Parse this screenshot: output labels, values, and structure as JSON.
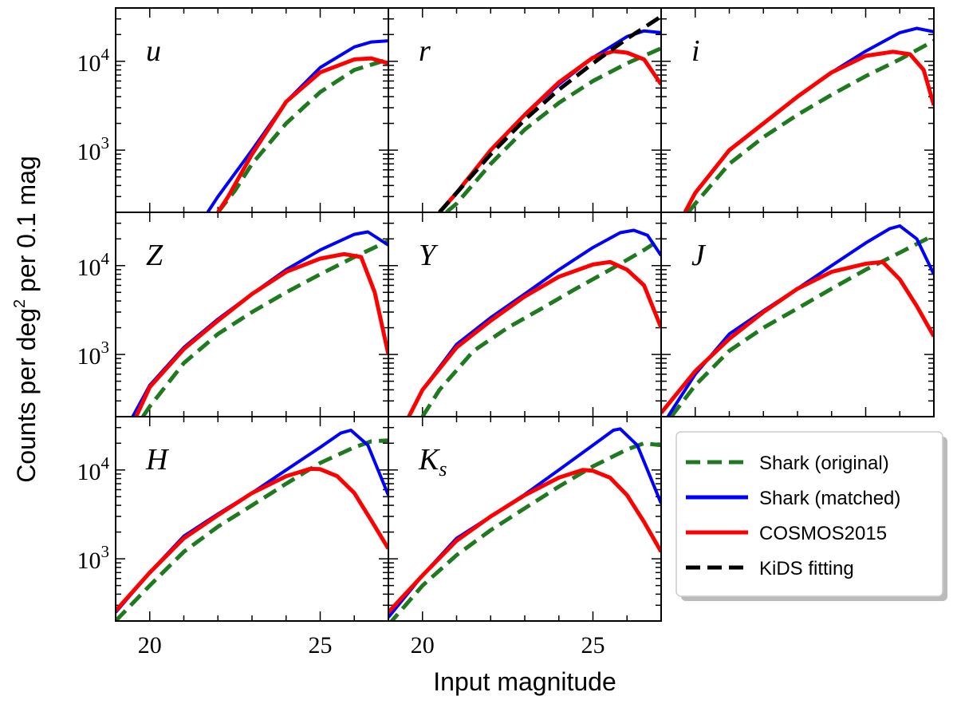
{
  "figure": {
    "xlabel": "Input magnitude",
    "ylabel_main": "Counts per deg",
    "ylabel_sup": "2",
    "ylabel_tail": " per 0.1 mag"
  },
  "chart_data": {
    "type": "line",
    "xlim": [
      19.0,
      27.0
    ],
    "ylim_log10": [
      2.3,
      4.6
    ],
    "yscale": "log",
    "xticks": [
      20,
      25
    ],
    "xtick_labels": [
      "20",
      "25"
    ],
    "yticks": [
      1000,
      10000
    ],
    "ytick_labels": [
      {
        "base": "10",
        "exp": "3"
      },
      {
        "base": "10",
        "exp": "4"
      }
    ],
    "legend": {
      "placement": "lower-right",
      "entries": [
        {
          "label": "Shark (original)",
          "color": "#1f7a1f",
          "style": "dashed"
        },
        {
          "label": "Shark (matched)",
          "color": "#0000ff",
          "style": "solid"
        },
        {
          "label": "COSMOS2015",
          "color": "#ff0000",
          "style": "solid"
        },
        {
          "label": "KiDS fitting",
          "color": "#000000",
          "style": "dashed"
        }
      ]
    },
    "colors": {
      "original": "#1f7a1f",
      "matched": "#0000ff",
      "cosmos": "#ff0000",
      "kids": "#000000"
    },
    "panels": [
      {
        "label": "u",
        "series": {
          "original": [
            [
              22.0,
              200
            ],
            [
              22.5,
              350
            ],
            [
              23.0,
              700
            ],
            [
              24.0,
              2000
            ],
            [
              25.0,
              4500
            ],
            [
              26.0,
              8000
            ],
            [
              27.0,
              10500
            ]
          ],
          "matched": [
            [
              21.7,
              200
            ],
            [
              22.0,
              300
            ],
            [
              23.0,
              1000
            ],
            [
              24.0,
              3500
            ],
            [
              25.0,
              8500
            ],
            [
              26.0,
              14500
            ],
            [
              26.5,
              16500
            ],
            [
              27.0,
              17000
            ]
          ],
          "cosmos": [
            [
              22.0,
              200
            ],
            [
              22.3,
              300
            ],
            [
              23.0,
              900
            ],
            [
              24.0,
              3500
            ],
            [
              25.0,
              7500
            ],
            [
              26.0,
              10500
            ],
            [
              26.5,
              10800
            ],
            [
              27.0,
              9500
            ]
          ]
        }
      },
      {
        "label": "r",
        "series": {
          "original": [
            [
              20.7,
              200
            ],
            [
              21.0,
              250
            ],
            [
              22.0,
              700
            ],
            [
              23.0,
              1700
            ],
            [
              24.0,
              3400
            ],
            [
              25.0,
              6000
            ],
            [
              26.0,
              9500
            ],
            [
              27.0,
              14000
            ]
          ],
          "matched": [
            [
              20.5,
              200
            ],
            [
              21.0,
              330
            ],
            [
              22.0,
              1000
            ],
            [
              23.0,
              2500
            ],
            [
              24.0,
              5500
            ],
            [
              25.0,
              11000
            ],
            [
              26.0,
              19000
            ],
            [
              26.5,
              22000
            ],
            [
              27.0,
              21000
            ]
          ],
          "cosmos": [
            [
              20.5,
              200
            ],
            [
              21.0,
              330
            ],
            [
              22.0,
              1000
            ],
            [
              23.0,
              2500
            ],
            [
              24.0,
              5800
            ],
            [
              25.0,
              11000
            ],
            [
              25.6,
              13000
            ],
            [
              26.0,
              12500
            ],
            [
              26.5,
              10500
            ],
            [
              27.0,
              5500
            ]
          ],
          "kids": [
            [
              20.5,
              200
            ],
            [
              21.0,
              330
            ],
            [
              22.0,
              900
            ],
            [
              23.0,
              2200
            ],
            [
              24.0,
              4800
            ],
            [
              25.0,
              9500
            ],
            [
              26.0,
              18000
            ],
            [
              27.0,
              32000
            ]
          ]
        }
      },
      {
        "label": "i",
        "series": {
          "original": [
            [
              19.8,
              200
            ],
            [
              20.0,
              250
            ],
            [
              21.0,
              700
            ],
            [
              22.0,
              1400
            ],
            [
              23.0,
              2500
            ],
            [
              24.0,
              4200
            ],
            [
              25.0,
              6800
            ],
            [
              26.0,
              10500
            ],
            [
              27.0,
              17000
            ]
          ],
          "matched": [
            [
              19.7,
              200
            ],
            [
              20.0,
              330
            ],
            [
              21.0,
              1000
            ],
            [
              22.0,
              2000
            ],
            [
              23.0,
              4000
            ],
            [
              24.0,
              7500
            ],
            [
              25.0,
              13000
            ],
            [
              26.0,
              21000
            ],
            [
              26.5,
              23500
            ],
            [
              27.0,
              21500
            ]
          ],
          "cosmos": [
            [
              19.7,
              200
            ],
            [
              20.0,
              330
            ],
            [
              21.0,
              1000
            ],
            [
              22.0,
              2000
            ],
            [
              23.0,
              4000
            ],
            [
              24.0,
              7500
            ],
            [
              25.0,
              11500
            ],
            [
              25.8,
              12800
            ],
            [
              26.3,
              12000
            ],
            [
              26.7,
              8000
            ],
            [
              27.0,
              3200
            ]
          ]
        }
      },
      {
        "label": "Z",
        "series": {
          "original": [
            [
              19.8,
              200
            ],
            [
              20.0,
              260
            ],
            [
              21.0,
              800
            ],
            [
              22.0,
              1700
            ],
            [
              23.0,
              3000
            ],
            [
              24.0,
              5000
            ],
            [
              25.0,
              8000
            ],
            [
              26.0,
              12500
            ],
            [
              27.0,
              19000
            ]
          ],
          "matched": [
            [
              19.5,
              200
            ],
            [
              20.0,
              450
            ],
            [
              21.0,
              1200
            ],
            [
              22.0,
              2500
            ],
            [
              23.0,
              4800
            ],
            [
              24.0,
              9000
            ],
            [
              25.0,
              15000
            ],
            [
              26.0,
              22500
            ],
            [
              26.4,
              24000
            ],
            [
              27.0,
              17000
            ]
          ],
          "cosmos": [
            [
              19.6,
              200
            ],
            [
              20.0,
              430
            ],
            [
              21.0,
              1150
            ],
            [
              22.0,
              2400
            ],
            [
              23.0,
              4800
            ],
            [
              24.0,
              8500
            ],
            [
              25.0,
              12000
            ],
            [
              25.7,
              13500
            ],
            [
              26.2,
              12500
            ],
            [
              26.6,
              5000
            ],
            [
              27.0,
              1000
            ]
          ]
        }
      },
      {
        "label": "Y",
        "series": {
          "original": [
            [
              20.0,
              200
            ],
            [
              20.5,
              400
            ],
            [
              21.5,
              1100
            ],
            [
              22.5,
              2000
            ],
            [
              23.5,
              3300
            ],
            [
              24.5,
              5500
            ],
            [
              25.5,
              9000
            ],
            [
              26.5,
              15000
            ],
            [
              27.0,
              20000
            ]
          ],
          "matched": [
            [
              19.6,
              200
            ],
            [
              20.0,
              400
            ],
            [
              21.0,
              1300
            ],
            [
              22.0,
              2600
            ],
            [
              23.0,
              4800
            ],
            [
              24.0,
              9000
            ],
            [
              25.0,
              16000
            ],
            [
              25.8,
              23500
            ],
            [
              26.2,
              25000
            ],
            [
              26.6,
              22000
            ],
            [
              27.0,
              13000
            ]
          ],
          "cosmos": [
            [
              19.6,
              200
            ],
            [
              20.0,
              400
            ],
            [
              21.0,
              1200
            ],
            [
              22.0,
              2400
            ],
            [
              23.0,
              4500
            ],
            [
              24.0,
              7500
            ],
            [
              25.0,
              10300
            ],
            [
              25.5,
              11000
            ],
            [
              26.0,
              9000
            ],
            [
              26.5,
              6000
            ],
            [
              27.0,
              2000
            ]
          ]
        }
      },
      {
        "label": "J",
        "series": {
          "original": [
            [
              19.3,
              200
            ],
            [
              20.0,
              450
            ],
            [
              21.0,
              1100
            ],
            [
              22.0,
              2000
            ],
            [
              23.0,
              3300
            ],
            [
              24.0,
              5500
            ],
            [
              25.0,
              9000
            ],
            [
              26.0,
              14000
            ],
            [
              27.0,
              22000
            ]
          ],
          "matched": [
            [
              19.2,
              200
            ],
            [
              20.0,
              600
            ],
            [
              21.0,
              1700
            ],
            [
              22.0,
              3100
            ],
            [
              23.0,
              5500
            ],
            [
              24.0,
              10000
            ],
            [
              25.0,
              18000
            ],
            [
              25.7,
              26000
            ],
            [
              26.0,
              28000
            ],
            [
              26.5,
              20000
            ],
            [
              27.0,
              8000
            ]
          ],
          "cosmos": [
            [
              19.0,
              220
            ],
            [
              20.0,
              650
            ],
            [
              21.0,
              1500
            ],
            [
              22.0,
              3000
            ],
            [
              23.0,
              5500
            ],
            [
              24.0,
              8500
            ],
            [
              25.0,
              10500
            ],
            [
              25.5,
              11000
            ],
            [
              26.0,
              7000
            ],
            [
              26.5,
              3500
            ],
            [
              27.0,
              1600
            ]
          ]
        }
      },
      {
        "label": "H",
        "series": {
          "original": [
            [
              19.0,
              200
            ],
            [
              20.0,
              500
            ],
            [
              21.0,
              1200
            ],
            [
              22.0,
              2300
            ],
            [
              23.0,
              4000
            ],
            [
              24.0,
              7000
            ],
            [
              25.0,
              12000
            ],
            [
              26.0,
              18000
            ],
            [
              26.5,
              21000
            ],
            [
              27.0,
              21500
            ]
          ],
          "matched": [
            [
              19.0,
              250
            ],
            [
              20.0,
              700
            ],
            [
              21.0,
              1800
            ],
            [
              22.0,
              3200
            ],
            [
              23.0,
              5500
            ],
            [
              24.0,
              10000
            ],
            [
              25.0,
              18000
            ],
            [
              25.6,
              26000
            ],
            [
              25.9,
              28000
            ],
            [
              26.4,
              19000
            ],
            [
              27.0,
              5200
            ]
          ],
          "cosmos": [
            [
              19.0,
              260
            ],
            [
              20.0,
              700
            ],
            [
              21.0,
              1700
            ],
            [
              22.0,
              3100
            ],
            [
              23.0,
              5500
            ],
            [
              24.0,
              8500
            ],
            [
              24.7,
              10300
            ],
            [
              25.0,
              10200
            ],
            [
              25.5,
              8500
            ],
            [
              26.0,
              5500
            ],
            [
              26.5,
              2700
            ],
            [
              27.0,
              1300
            ]
          ]
        }
      },
      {
        "label": "Ks",
        "label_base": "K",
        "label_sub": "s",
        "series": {
          "original": [
            [
              19.0,
              180
            ],
            [
              20.0,
              500
            ],
            [
              21.0,
              1100
            ],
            [
              22.0,
              2100
            ],
            [
              23.0,
              3700
            ],
            [
              24.0,
              6500
            ],
            [
              25.0,
              11000
            ],
            [
              26.0,
              17000
            ],
            [
              26.5,
              20000
            ],
            [
              27.0,
              19000
            ]
          ],
          "matched": [
            [
              19.0,
              220
            ],
            [
              20.0,
              650
            ],
            [
              21.0,
              1700
            ],
            [
              22.0,
              3000
            ],
            [
              23.0,
              5300
            ],
            [
              24.0,
              10000
            ],
            [
              25.0,
              19000
            ],
            [
              25.6,
              28000
            ],
            [
              25.8,
              29000
            ],
            [
              26.3,
              19000
            ],
            [
              27.0,
              4200
            ]
          ],
          "cosmos": [
            [
              19.0,
              250
            ],
            [
              20.0,
              650
            ],
            [
              21.0,
              1600
            ],
            [
              22.0,
              3000
            ],
            [
              23.0,
              5200
            ],
            [
              24.0,
              8200
            ],
            [
              24.7,
              10000
            ],
            [
              25.0,
              9800
            ],
            [
              25.5,
              8200
            ],
            [
              26.0,
              5200
            ],
            [
              26.5,
              2600
            ],
            [
              27.0,
              1200
            ]
          ]
        }
      }
    ]
  }
}
